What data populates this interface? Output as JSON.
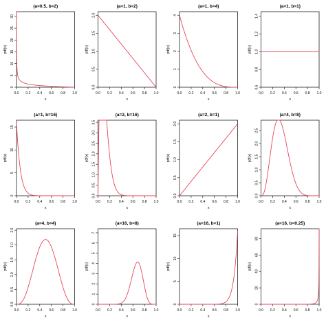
{
  "page": {
    "layout": "3x4 grid of density plots"
  },
  "style": {
    "curve_color": "#e6455a",
    "axis_color": "#000000",
    "background": "#ffffff"
  },
  "chart_data": [
    {
      "type": "line",
      "title": "(a=0.5, b=2)",
      "xlabel": "x",
      "ylabel": "pdf(x)",
      "a": 0.5,
      "b": 2,
      "xlim": [
        0,
        1
      ],
      "ylim": [
        0,
        32
      ],
      "xticks": [
        "0.0",
        "0.2",
        "0.4",
        "0.6",
        "0.8",
        "1.0"
      ],
      "yticks": [
        "0",
        "5",
        "10",
        "15",
        "20",
        "25",
        "30"
      ]
    },
    {
      "type": "line",
      "title": "(a=1, b=2)",
      "xlabel": "x",
      "ylabel": "pdf(x)",
      "a": 1,
      "b": 2,
      "xlim": [
        0,
        1
      ],
      "ylim": [
        0,
        2.1
      ],
      "xticks": [
        "0.0",
        "0.2",
        "0.4",
        "0.6",
        "0.8",
        "1.0"
      ],
      "yticks": [
        "0.0",
        "0.5",
        "1.0",
        "1.5",
        "2.0"
      ]
    },
    {
      "type": "line",
      "title": "(a=1, b=4)",
      "xlabel": "x",
      "ylabel": "pdf(x)",
      "a": 1,
      "b": 4,
      "xlim": [
        0,
        1
      ],
      "ylim": [
        0,
        4.2
      ],
      "xticks": [
        "0.0",
        "0.2",
        "0.4",
        "0.6",
        "0.8",
        "1.0"
      ],
      "yticks": [
        "0",
        "1",
        "2",
        "3",
        "4"
      ]
    },
    {
      "type": "line",
      "title": "(a=1, b=1)",
      "xlabel": "x",
      "ylabel": "pdf(x)",
      "a": 1,
      "b": 1,
      "xlim": [
        0,
        1
      ],
      "ylim": [
        0.6,
        1.45
      ],
      "xticks": [
        "0.0",
        "0.2",
        "0.4",
        "0.6",
        "0.8",
        "1.0"
      ],
      "yticks": [
        "0.6",
        "0.8",
        "1.0",
        "1.2",
        "1.4"
      ]
    },
    {
      "type": "line",
      "title": "(a=1, b=16)",
      "xlabel": "x",
      "ylabel": "pdf(x)",
      "a": 1,
      "b": 16,
      "xlim": [
        0,
        1
      ],
      "ylim": [
        0,
        16.5
      ],
      "xticks": [
        "0.0",
        "0.2",
        "0.4",
        "0.6",
        "0.8",
        "1.0"
      ],
      "yticks": [
        "0",
        "5",
        "10",
        "15"
      ]
    },
    {
      "type": "line",
      "title": "(a=2, b=16)",
      "xlabel": "x",
      "ylabel": "pdf(x)",
      "a": 2,
      "b": 16,
      "xlim": [
        0,
        1
      ],
      "ylim": [
        0,
        3.6
      ],
      "xticks": [
        "0.0",
        "0.2",
        "0.4",
        "0.6",
        "0.8",
        "1.0"
      ],
      "yticks": [
        "0.0",
        "0.5",
        "1.0",
        "1.5",
        "2.0",
        "2.5",
        "3.0",
        "3.5"
      ]
    },
    {
      "type": "line",
      "title": "(a=2, b=1)",
      "xlabel": "x",
      "ylabel": "pdf(x)",
      "a": 2,
      "b": 1,
      "xlim": [
        0,
        1
      ],
      "ylim": [
        0,
        2.1
      ],
      "xticks": [
        "0.0",
        "0.2",
        "0.4",
        "0.6",
        "0.8",
        "1.0"
      ],
      "yticks": [
        "0.0",
        "0.5",
        "1.0",
        "1.5",
        "2.0"
      ]
    },
    {
      "type": "line",
      "title": "(a=4, b=8)",
      "xlabel": "x",
      "ylabel": "pdf(x)",
      "a": 4,
      "b": 8,
      "xlim": [
        0,
        1
      ],
      "ylim": [
        0,
        2.9
      ],
      "xticks": [
        "0.0",
        "0.2",
        "0.4",
        "0.6",
        "0.8",
        "1.0"
      ],
      "yticks": [
        "0.0",
        "0.5",
        "1.0",
        "1.5",
        "2.0",
        "2.5"
      ]
    },
    {
      "type": "line",
      "title": "(a=4, b=4)",
      "xlabel": "x",
      "ylabel": "pdf(x)",
      "a": 4,
      "b": 4,
      "xlim": [
        0,
        1
      ],
      "ylim": [
        0,
        2.55
      ],
      "xticks": [
        "0.0",
        "0.2",
        "0.4",
        "0.6",
        "0.8",
        "1.0"
      ],
      "yticks": [
        "0.0",
        "0.5",
        "1.0",
        "1.5",
        "2.0",
        "2.5"
      ]
    },
    {
      "type": "line",
      "title": "(a=16, b=8)",
      "xlabel": "x",
      "ylabel": "pdf(x)",
      "a": 16,
      "b": 8,
      "xlim": [
        0,
        1
      ],
      "ylim": [
        0,
        7.4
      ],
      "xticks": [
        "0.0",
        "0.2",
        "0.4",
        "0.6",
        "0.8",
        "1.0"
      ],
      "yticks": [
        "0",
        "1",
        "2",
        "3",
        "4",
        "5",
        "6",
        "7"
      ]
    },
    {
      "type": "line",
      "title": "(a=16, b=1)",
      "xlabel": "x",
      "ylabel": "pdf(x)",
      "a": 16,
      "b": 1,
      "xlim": [
        0,
        1
      ],
      "ylim": [
        0,
        16.5
      ],
      "xticks": [
        "0.0",
        "0.2",
        "0.4",
        "0.6",
        "0.8",
        "1.0"
      ],
      "yticks": [
        "0",
        "5",
        "10",
        "15"
      ]
    },
    {
      "type": "line",
      "title": "(a=16, b=0.25)",
      "xlabel": "x",
      "ylabel": "pdf(x)",
      "a": 16,
      "b": 0.25,
      "xlim": [
        0,
        1
      ],
      "ylim": [
        0,
        92
      ],
      "xticks": [
        "0.0",
        "0.2",
        "0.4",
        "0.6",
        "0.8",
        "1.0"
      ],
      "yticks": [
        "0",
        "20",
        "40",
        "60",
        "80"
      ]
    }
  ]
}
